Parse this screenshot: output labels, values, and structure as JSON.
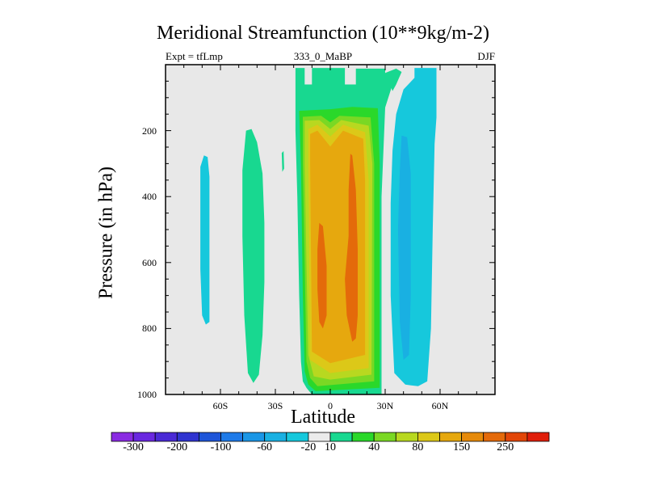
{
  "chart_data": {
    "type": "filled-contour",
    "title": "Meridional Streamfunction (10**9kg/m-2)",
    "subtitle_left": "Expt = tfLmp",
    "subtitle_center": "333_0_MaBP",
    "subtitle_right": "DJF",
    "xlabel": "Latitude",
    "ylabel": "Pressure (in hPa)",
    "xlim": [
      -90,
      90
    ],
    "ylim": [
      1000,
      0
    ],
    "x_ticks": [
      {
        "value": -60,
        "label": "60S"
      },
      {
        "value": -30,
        "label": "30S"
      },
      {
        "value": 0,
        "label": "0"
      },
      {
        "value": 30,
        "label": "30N"
      },
      {
        "value": 60,
        "label": "60N"
      }
    ],
    "y_ticks": [
      {
        "value": 200,
        "label": "200"
      },
      {
        "value": 400,
        "label": "400"
      },
      {
        "value": 600,
        "label": "600"
      },
      {
        "value": 800,
        "label": "800"
      },
      {
        "value": 1000,
        "label": "1000"
      }
    ],
    "colorbar": {
      "colors": [
        "#8a2be2",
        "#6a28e0",
        "#4a2ad6",
        "#3034d0",
        "#1e55d8",
        "#1e7ae8",
        "#1a96e6",
        "#19b0e2",
        "#16c8dc",
        "#ebebeb",
        "#18d890",
        "#2ad82a",
        "#7ad824",
        "#b8d820",
        "#dcc818",
        "#e6a80e",
        "#e68a0a",
        "#e46a0a",
        "#e24608",
        "#e01e0a"
      ],
      "labels": [
        {
          "boundary": 1,
          "text": "-300"
        },
        {
          "boundary": 3,
          "text": "-200"
        },
        {
          "boundary": 5,
          "text": "-100"
        },
        {
          "boundary": 7,
          "text": "-60"
        },
        {
          "boundary": 9,
          "text": "-20"
        },
        {
          "boundary": 10,
          "text": "10"
        },
        {
          "boundary": 12,
          "text": "40"
        },
        {
          "boundary": 14,
          "text": "80"
        },
        {
          "boundary": 16,
          "text": "150"
        },
        {
          "boundary": 18,
          "text": "250"
        }
      ]
    },
    "regions": [
      {
        "name": "sh-cell-cyan",
        "level": 8,
        "pts": [
          [
            -69,
            -275
          ],
          [
            -67,
            -280
          ],
          [
            -66,
            -340
          ],
          [
            -66,
            -540
          ],
          [
            -66,
            -700
          ],
          [
            -66,
            -780
          ],
          [
            -68,
            -788
          ],
          [
            -70,
            -760
          ],
          [
            -71,
            -620
          ],
          [
            -71,
            -420
          ],
          [
            -71,
            -310
          ]
        ]
      },
      {
        "name": "sh-cell-green-left",
        "level": 10,
        "pts": [
          [
            -46,
            -200
          ],
          [
            -43,
            -195
          ],
          [
            -40,
            -235
          ],
          [
            -37,
            -330
          ],
          [
            -36,
            -480
          ],
          [
            -36,
            -660
          ],
          [
            -37,
            -820
          ],
          [
            -39,
            -940
          ],
          [
            -42,
            -965
          ],
          [
            -45,
            -935
          ],
          [
            -47,
            -760
          ],
          [
            -48,
            -520
          ],
          [
            -48,
            -320
          ]
        ]
      },
      {
        "name": "sh-sliver",
        "level": 10,
        "pts": [
          [
            -26.5,
            -268
          ],
          [
            -25.5,
            -262
          ],
          [
            -25.2,
            -315
          ],
          [
            -26.2,
            -325
          ]
        ]
      },
      {
        "name": "hadley-10",
        "level": 10,
        "pts": [
          [
            -19,
            -10
          ],
          [
            -14,
            -10
          ],
          [
            -14,
            -60
          ],
          [
            -10,
            -60
          ],
          [
            -10,
            -10
          ],
          [
            8,
            -10
          ],
          [
            8,
            -60
          ],
          [
            14,
            -60
          ],
          [
            14,
            -12
          ],
          [
            30,
            -12
          ],
          [
            30,
            -25
          ],
          [
            34,
            -60
          ],
          [
            30,
            -130
          ],
          [
            28,
            -400
          ],
          [
            28,
            -1000
          ],
          [
            -10,
            -1000
          ],
          [
            -13,
            -980
          ],
          [
            -15,
            -960
          ],
          [
            -16,
            -900
          ],
          [
            -17,
            -700
          ],
          [
            -18,
            -400
          ],
          [
            -19,
            -200
          ]
        ]
      },
      {
        "name": "hadley-40",
        "level": 11,
        "pts": [
          [
            -17,
            -140
          ],
          [
            0,
            -135
          ],
          [
            12,
            -128
          ],
          [
            26,
            -132
          ],
          [
            27,
            -300
          ],
          [
            27,
            -980
          ],
          [
            -8,
            -990
          ],
          [
            -12,
            -970
          ],
          [
            -14,
            -930
          ],
          [
            -15,
            -700
          ],
          [
            -16,
            -300
          ]
        ]
      },
      {
        "name": "hadley-60",
        "level": 12,
        "pts": [
          [
            -15,
            -158
          ],
          [
            -5,
            -155
          ],
          [
            0,
            -175
          ],
          [
            5,
            -155
          ],
          [
            22,
            -160
          ],
          [
            24,
            -300
          ],
          [
            24,
            -960
          ],
          [
            -7,
            -975
          ],
          [
            -11,
            -950
          ],
          [
            -13,
            -900
          ],
          [
            -14,
            -600
          ],
          [
            -15,
            -300
          ]
        ]
      },
      {
        "name": "hadley-80",
        "level": 13,
        "pts": [
          [
            -14,
            -170
          ],
          [
            -6,
            -168
          ],
          [
            0,
            -195
          ],
          [
            6,
            -168
          ],
          [
            21,
            -185
          ],
          [
            23,
            -300
          ],
          [
            22.5,
            -940
          ],
          [
            0,
            -955
          ],
          [
            -9,
            -945
          ],
          [
            -12,
            -880
          ],
          [
            -13,
            -600
          ],
          [
            -14,
            -300
          ]
        ]
      },
      {
        "name": "hadley-100",
        "level": 14,
        "pts": [
          [
            -12,
            -195
          ],
          [
            -7,
            -182
          ],
          [
            0,
            -218
          ],
          [
            7,
            -182
          ],
          [
            19,
            -205
          ],
          [
            21,
            -350
          ],
          [
            21,
            -920
          ],
          [
            0,
            -935
          ],
          [
            -11,
            -895
          ],
          [
            -12,
            -300
          ]
        ]
      },
      {
        "name": "hadley-150",
        "level": 15,
        "pts": [
          [
            -11,
            -210
          ],
          [
            -7,
            -200
          ],
          [
            0,
            -248
          ],
          [
            7,
            -200
          ],
          [
            18,
            -225
          ],
          [
            19,
            -350
          ],
          [
            19,
            -880
          ],
          [
            0,
            -905
          ],
          [
            -10,
            -870
          ],
          [
            -11,
            -300
          ]
        ]
      },
      {
        "name": "core-left",
        "level": 17,
        "pts": [
          [
            -6,
            -480
          ],
          [
            -4,
            -490
          ],
          [
            -2,
            -610
          ],
          [
            -2,
            -760
          ],
          [
            -4,
            -800
          ],
          [
            -6,
            -780
          ],
          [
            -7,
            -680
          ],
          [
            -7,
            -560
          ]
        ]
      },
      {
        "name": "core-right",
        "level": 17,
        "pts": [
          [
            11,
            -270
          ],
          [
            12,
            -275
          ],
          [
            14,
            -380
          ],
          [
            15,
            -560
          ],
          [
            15,
            -760
          ],
          [
            14,
            -830
          ],
          [
            12,
            -840
          ],
          [
            9,
            -760
          ],
          [
            8,
            -650
          ],
          [
            10,
            -520
          ],
          [
            10,
            -380
          ]
        ]
      },
      {
        "name": "upper-green-patch",
        "level": 10,
        "pts": [
          [
            30,
            -25
          ],
          [
            36,
            -12
          ],
          [
            39,
            -22
          ],
          [
            36,
            -60
          ],
          [
            34,
            -80
          ]
        ]
      },
      {
        "name": "nh-cyan",
        "level": 8,
        "pts": [
          [
            46,
            -10
          ],
          [
            58,
            -10
          ],
          [
            58,
            -60
          ],
          [
            58,
            -160
          ],
          [
            57,
            -240
          ],
          [
            56,
            -500
          ],
          [
            55,
            -800
          ],
          [
            53,
            -960
          ],
          [
            48,
            -975
          ],
          [
            41,
            -970
          ],
          [
            35,
            -935
          ],
          [
            33,
            -700
          ],
          [
            33,
            -420
          ],
          [
            34,
            -260
          ],
          [
            36,
            -150
          ],
          [
            40,
            -75
          ],
          [
            46,
            -40
          ]
        ]
      },
      {
        "name": "nh-blue-deep",
        "level": 7,
        "pts": [
          [
            39,
            -215
          ],
          [
            42,
            -220
          ],
          [
            44,
            -330
          ],
          [
            44,
            -700
          ],
          [
            43,
            -880
          ],
          [
            40,
            -895
          ],
          [
            38,
            -780
          ],
          [
            37,
            -500
          ],
          [
            38,
            -320
          ]
        ]
      }
    ]
  }
}
